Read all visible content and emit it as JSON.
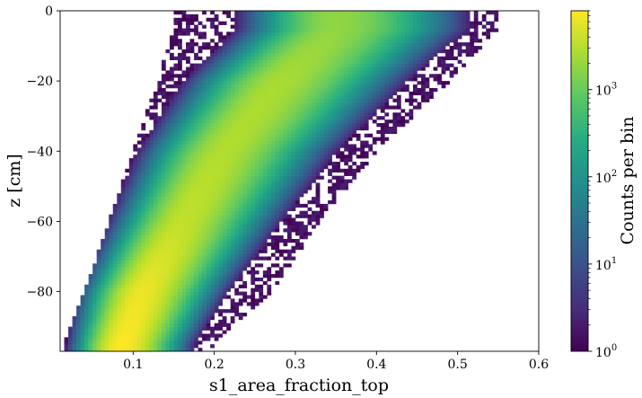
{
  "chart_data": {
    "type": "heatmap",
    "xlabel": "s1_area_fraction_top",
    "ylabel": "z [cm]",
    "xlim": [
      0.01,
      0.6
    ],
    "ylim": [
      -97,
      0
    ],
    "x_ticks": [
      {
        "value": 0.1,
        "label": "0.1"
      },
      {
        "value": 0.2,
        "label": "0.2"
      },
      {
        "value": 0.3,
        "label": "0.3"
      },
      {
        "value": 0.4,
        "label": "0.4"
      },
      {
        "value": 0.5,
        "label": "0.5"
      },
      {
        "value": 0.6,
        "label": "0.6"
      }
    ],
    "y_ticks": [
      {
        "value": 0,
        "label": "0"
      },
      {
        "value": -20,
        "label": "−20"
      },
      {
        "value": -40,
        "label": "−40"
      },
      {
        "value": -60,
        "label": "−60"
      },
      {
        "value": -80,
        "label": "−80"
      }
    ],
    "colorbar": {
      "label": "Counts per bin",
      "scale": "log",
      "colormap": "viridis",
      "range": [
        1,
        8000
      ],
      "ticks": [
        {
          "value": 1,
          "base": "10",
          "exp": "0"
        },
        {
          "value": 10,
          "base": "10",
          "exp": "1"
        },
        {
          "value": 100,
          "base": "10",
          "exp": "2"
        },
        {
          "value": 1000,
          "base": "10",
          "exp": "3"
        }
      ]
    },
    "distribution": {
      "bins_x": 118,
      "bins_y": 97,
      "ridge_z": [
        -95,
        -80,
        -60,
        -40,
        -20,
        -5
      ],
      "ridge_x": [
        0.085,
        0.11,
        0.16,
        0.21,
        0.28,
        0.35
      ],
      "core_width": [
        0.035,
        0.042,
        0.05,
        0.058,
        0.066,
        0.07
      ],
      "peak_log10_counts": [
        3.9,
        3.8,
        3.55,
        3.45,
        3.4,
        3.25
      ],
      "left_edge_x": [
        0.013,
        0.04,
        0.07,
        0.1,
        0.13,
        0.15
      ],
      "right_edge_x": [
        0.2,
        0.27,
        0.33,
        0.4,
        0.49,
        0.55
      ]
    }
  }
}
